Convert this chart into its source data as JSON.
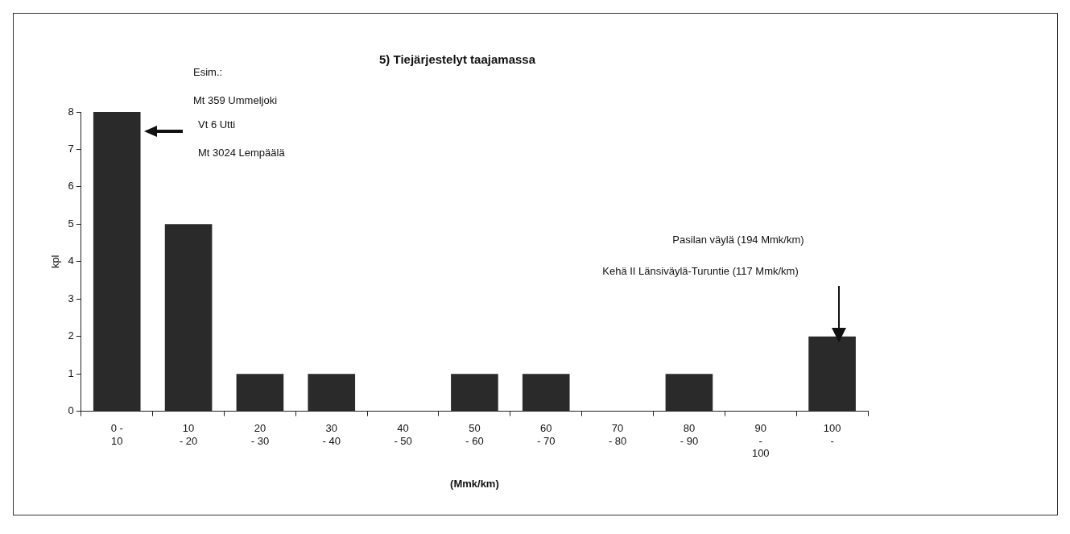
{
  "chart_data": {
    "type": "bar",
    "title": "5) Tiejärjestelyt taajamassa",
    "xlabel": "(Mmk/km)",
    "ylabel": "kpl",
    "categories": [
      "0 -\n10",
      "10\n- 20",
      "20\n- 30",
      "30\n- 40",
      "40\n- 50",
      "50\n- 60",
      "60\n- 70",
      "70\n- 80",
      "80\n- 90",
      "90\n-\n100",
      "100\n-"
    ],
    "values": [
      8,
      5,
      1,
      1,
      0,
      1,
      1,
      0,
      1,
      0,
      2
    ],
    "color": "#2a2a2a",
    "ylim": [
      0,
      8
    ],
    "yticks": [
      0,
      1,
      2,
      3,
      4,
      5,
      6,
      7,
      8
    ],
    "annotations": [
      "Esim.:",
      "Mt 359 Ummeljoki",
      "Vt 6 Utti",
      "Mt 3024 Lempäälä",
      "Pasilan väylä (194 Mmk/km)",
      "Kehä II Länsiväylä-Turuntie (117 Mmk/km)"
    ]
  }
}
